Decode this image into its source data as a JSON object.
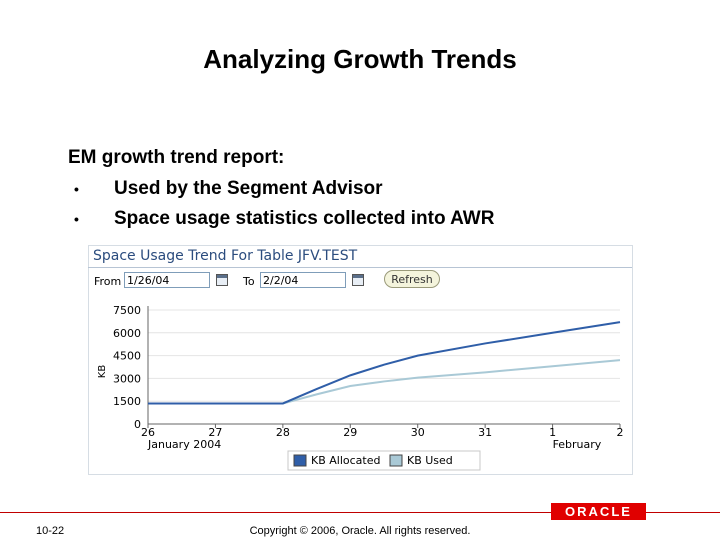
{
  "slide": {
    "title": "Analyzing Growth Trends",
    "heading": "EM growth trend report:",
    "bullets": [
      "Used by the Segment Advisor",
      "Space usage statistics collected into AWR"
    ],
    "bullet_symbol": "•"
  },
  "panel": {
    "title": "Space Usage Trend For Table JFV.TEST",
    "from_label": "From",
    "from_value": "1/26/04",
    "to_label": "To",
    "to_value": "2/2/04",
    "refresh_label": "Refresh"
  },
  "chart_data": {
    "type": "line",
    "ylabel": "KB",
    "ylim": [
      0,
      7500
    ],
    "yticks": [
      "0",
      "1500",
      "3000",
      "4500",
      "6000",
      "7500"
    ],
    "x_tick_labels": [
      "26",
      "27",
      "28",
      "29",
      "30",
      "31",
      "1",
      "2"
    ],
    "x_sublabels": [
      "January 2004",
      "February"
    ],
    "series": [
      {
        "name": "KB Allocated",
        "color": "#2f5ea8",
        "x": [
          0,
          1,
          2,
          2.5,
          3,
          3.5,
          4,
          5,
          6,
          7
        ],
        "values": [
          1350,
          1350,
          1350,
          2300,
          3200,
          3900,
          4500,
          5300,
          6000,
          6700
        ]
      },
      {
        "name": "KB Used",
        "color": "#a9c9d6",
        "x": [
          0,
          1,
          2,
          2.5,
          3,
          3.5,
          4,
          5,
          6,
          7
        ],
        "values": [
          1350,
          1350,
          1350,
          1950,
          2500,
          2800,
          3050,
          3400,
          3800,
          4200
        ]
      }
    ],
    "legend_position": "bottom"
  },
  "footer": {
    "page_number": "10-22",
    "copyright": "Copyright © 2006, Oracle. All rights reserved.",
    "logo_text": "ORACLE"
  }
}
